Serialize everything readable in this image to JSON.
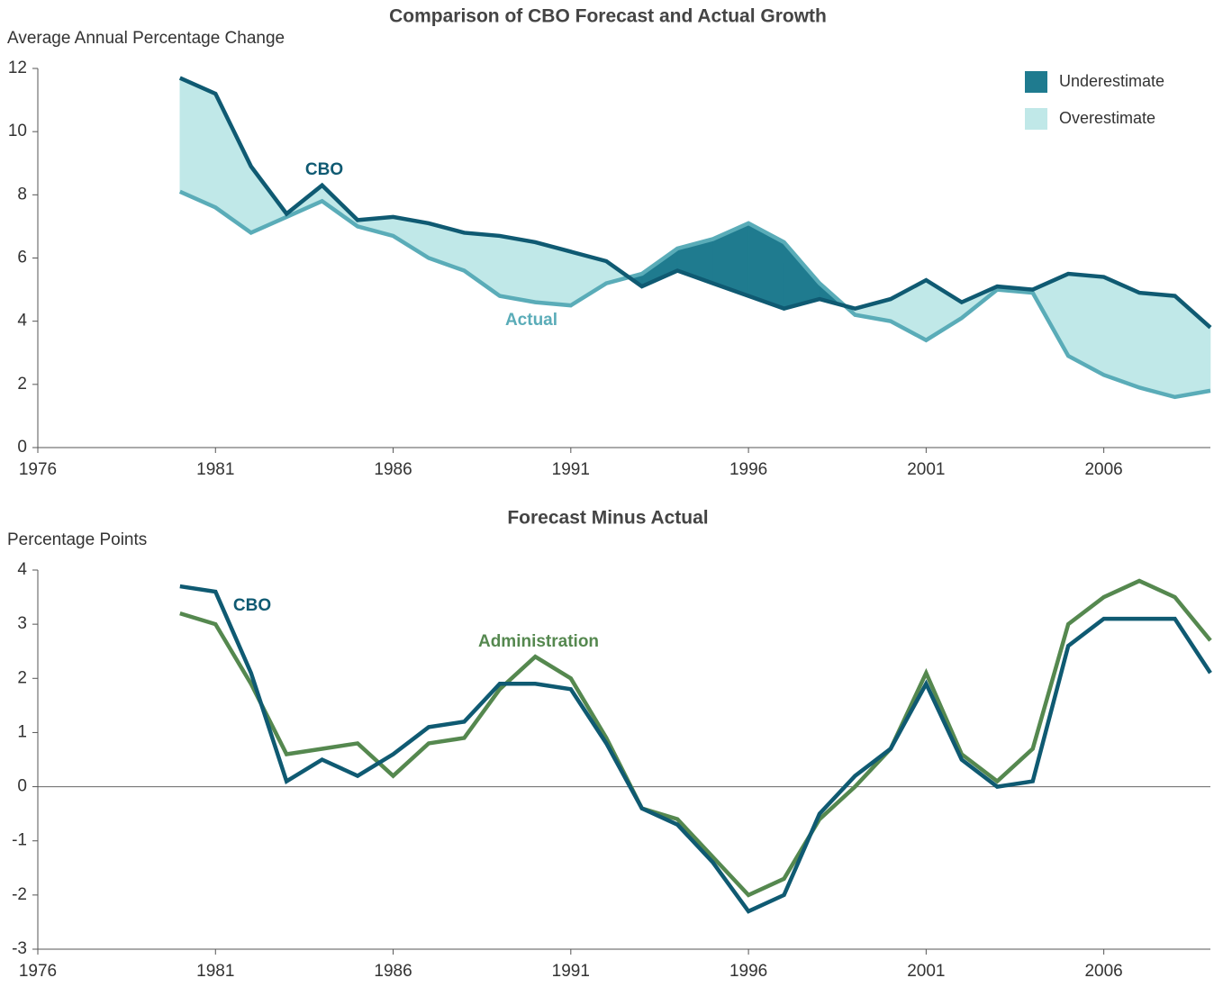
{
  "chart_data": [
    {
      "type": "line",
      "title": "Comparison of CBO Forecast and Actual Growth",
      "y_label": "Average Annual Percentage Change",
      "x": [
        1980,
        1981,
        1982,
        1983,
        1984,
        1985,
        1986,
        1987,
        1988,
        1989,
        1990,
        1991,
        1992,
        1993,
        1994,
        1995,
        1996,
        1997,
        1998,
        1999,
        2000,
        2001,
        2002,
        2003,
        2004,
        2005,
        2006,
        2007,
        2008,
        2009
      ],
      "series": [
        {
          "name": "CBO",
          "color": "#0f5a72",
          "values": [
            11.7,
            11.2,
            8.9,
            7.4,
            8.3,
            7.2,
            7.3,
            7.1,
            6.8,
            6.7,
            6.5,
            6.2,
            5.9,
            5.1,
            5.6,
            5.2,
            4.8,
            4.4,
            4.7,
            4.4,
            4.7,
            5.3,
            4.6,
            5.1,
            5.0,
            5.5,
            5.4,
            4.9,
            4.8,
            3.8
          ]
        },
        {
          "name": "Actual",
          "color": "#5aacb8",
          "values": [
            8.1,
            7.6,
            6.8,
            7.3,
            7.8,
            7.0,
            6.7,
            6.0,
            5.6,
            4.8,
            4.6,
            4.5,
            5.2,
            5.5,
            6.3,
            6.6,
            7.1,
            6.5,
            5.2,
            4.2,
            4.0,
            3.4,
            4.1,
            5.0,
            4.9,
            2.9,
            2.3,
            1.9,
            1.6,
            1.8
          ]
        }
      ],
      "fills": [
        {
          "name": "Underestimate",
          "color": "#1f7b8f"
        },
        {
          "name": "Overestimate",
          "color": "#c0e8e8"
        }
      ],
      "xlim": [
        1976,
        2009
      ],
      "xticks": [
        1976,
        1981,
        1986,
        1991,
        1996,
        2001,
        2006
      ],
      "ylim": [
        0,
        12
      ],
      "yticks": [
        0,
        2,
        4,
        6,
        8,
        10,
        12
      ]
    },
    {
      "type": "line",
      "title": "Forecast Minus Actual",
      "y_label": "Percentage Points",
      "x": [
        1980,
        1981,
        1982,
        1983,
        1984,
        1985,
        1986,
        1987,
        1988,
        1989,
        1990,
        1991,
        1992,
        1993,
        1994,
        1995,
        1996,
        1997,
        1998,
        1999,
        2000,
        2001,
        2002,
        2003,
        2004,
        2005,
        2006,
        2007,
        2008,
        2009
      ],
      "series": [
        {
          "name": "CBO",
          "color": "#0f5a72",
          "values": [
            3.7,
            3.6,
            2.1,
            0.1,
            0.5,
            0.2,
            0.6,
            1.1,
            1.2,
            1.9,
            1.9,
            1.8,
            0.8,
            -0.4,
            -0.7,
            -1.4,
            -2.3,
            -2.0,
            -0.5,
            0.2,
            0.7,
            1.9,
            0.5,
            0.0,
            0.1,
            2.6,
            3.1,
            3.1,
            3.1,
            2.1
          ]
        },
        {
          "name": "Administration",
          "color": "#55884f",
          "values": [
            3.2,
            3.0,
            1.9,
            0.6,
            0.7,
            0.8,
            0.2,
            0.8,
            0.9,
            1.8,
            2.4,
            2.0,
            0.9,
            -0.4,
            -0.6,
            -1.3,
            -2.0,
            -1.7,
            -0.6,
            0.0,
            0.7,
            2.1,
            0.6,
            0.1,
            0.7,
            3.0,
            3.5,
            3.8,
            3.5,
            2.7
          ]
        }
      ],
      "reference_line": 0,
      "xlim": [
        1976,
        2009
      ],
      "xticks": [
        1976,
        1981,
        1986,
        1991,
        1996,
        2001,
        2006
      ],
      "ylim": [
        -3,
        4
      ],
      "yticks": [
        -3,
        -2,
        -1,
        0,
        1,
        2,
        3,
        4
      ]
    }
  ]
}
